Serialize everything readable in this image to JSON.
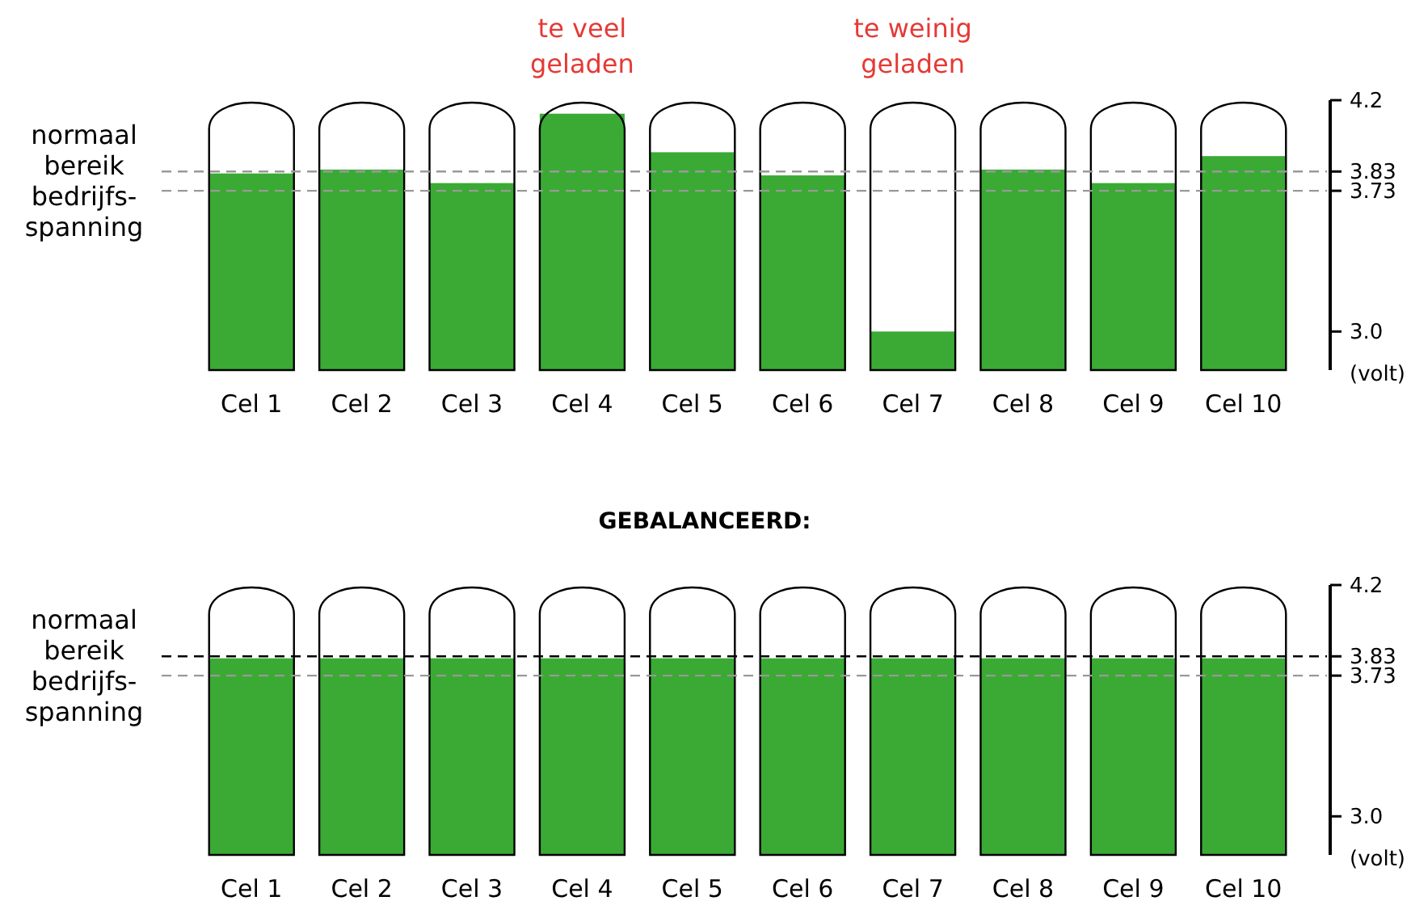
{
  "chart_data": [
    {
      "type": "bar",
      "categories": [
        "Cel 1",
        "Cel 2",
        "Cel 3",
        "Cel 4",
        "Cel 5",
        "Cel 6",
        "Cel 7",
        "Cel 8",
        "Cel 9",
        "Cel 10"
      ],
      "values": [
        3.82,
        3.84,
        3.77,
        4.13,
        3.93,
        3.81,
        3.0,
        3.84,
        3.77,
        3.91
      ],
      "color": "#3aaa35",
      "ylim": [
        2.8,
        4.2
      ],
      "yticks": [
        {
          "value": 3,
          "label": "3.0"
        },
        3.73,
        3.83,
        4.2
      ],
      "ylabel": "(volt)",
      "ref_lines": [
        {
          "axis": "y",
          "value": 3.83,
          "color": "#999999",
          "line_style": "dashed"
        },
        {
          "axis": "y",
          "value": 3.73,
          "color": "#999999",
          "line_style": "dashed"
        }
      ],
      "annotations": [
        "normaal bereik bedrijfs-spanning",
        "te veel geladen",
        "te weinig geladen"
      ]
    },
    {
      "type": "bar",
      "title": "GEBALANCEERD:",
      "categories": [
        "Cel 1",
        "Cel 2",
        "Cel 3",
        "Cel 4",
        "Cel 5",
        "Cel 6",
        "Cel 7",
        "Cel 8",
        "Cel 9",
        "Cel 10"
      ],
      "values": [
        3.82,
        3.82,
        3.82,
        3.82,
        3.82,
        3.82,
        3.82,
        3.82,
        3.82,
        3.82
      ],
      "color": "#3aaa35",
      "ylim": [
        2.8,
        4.2
      ],
      "yticks": [
        {
          "value": 3,
          "label": "3.0"
        },
        3.73,
        3.83,
        4.2
      ],
      "ylabel": "(volt)",
      "ref_lines": [
        {
          "axis": "y",
          "value": 3.83,
          "color": "#000000",
          "line_style": "dashed"
        },
        {
          "axis": "y",
          "value": 3.73,
          "color": "#999999",
          "line_style": "dashed"
        }
      ],
      "annotations": [
        "normaal bereik bedrijfs-spanning"
      ]
    }
  ]
}
